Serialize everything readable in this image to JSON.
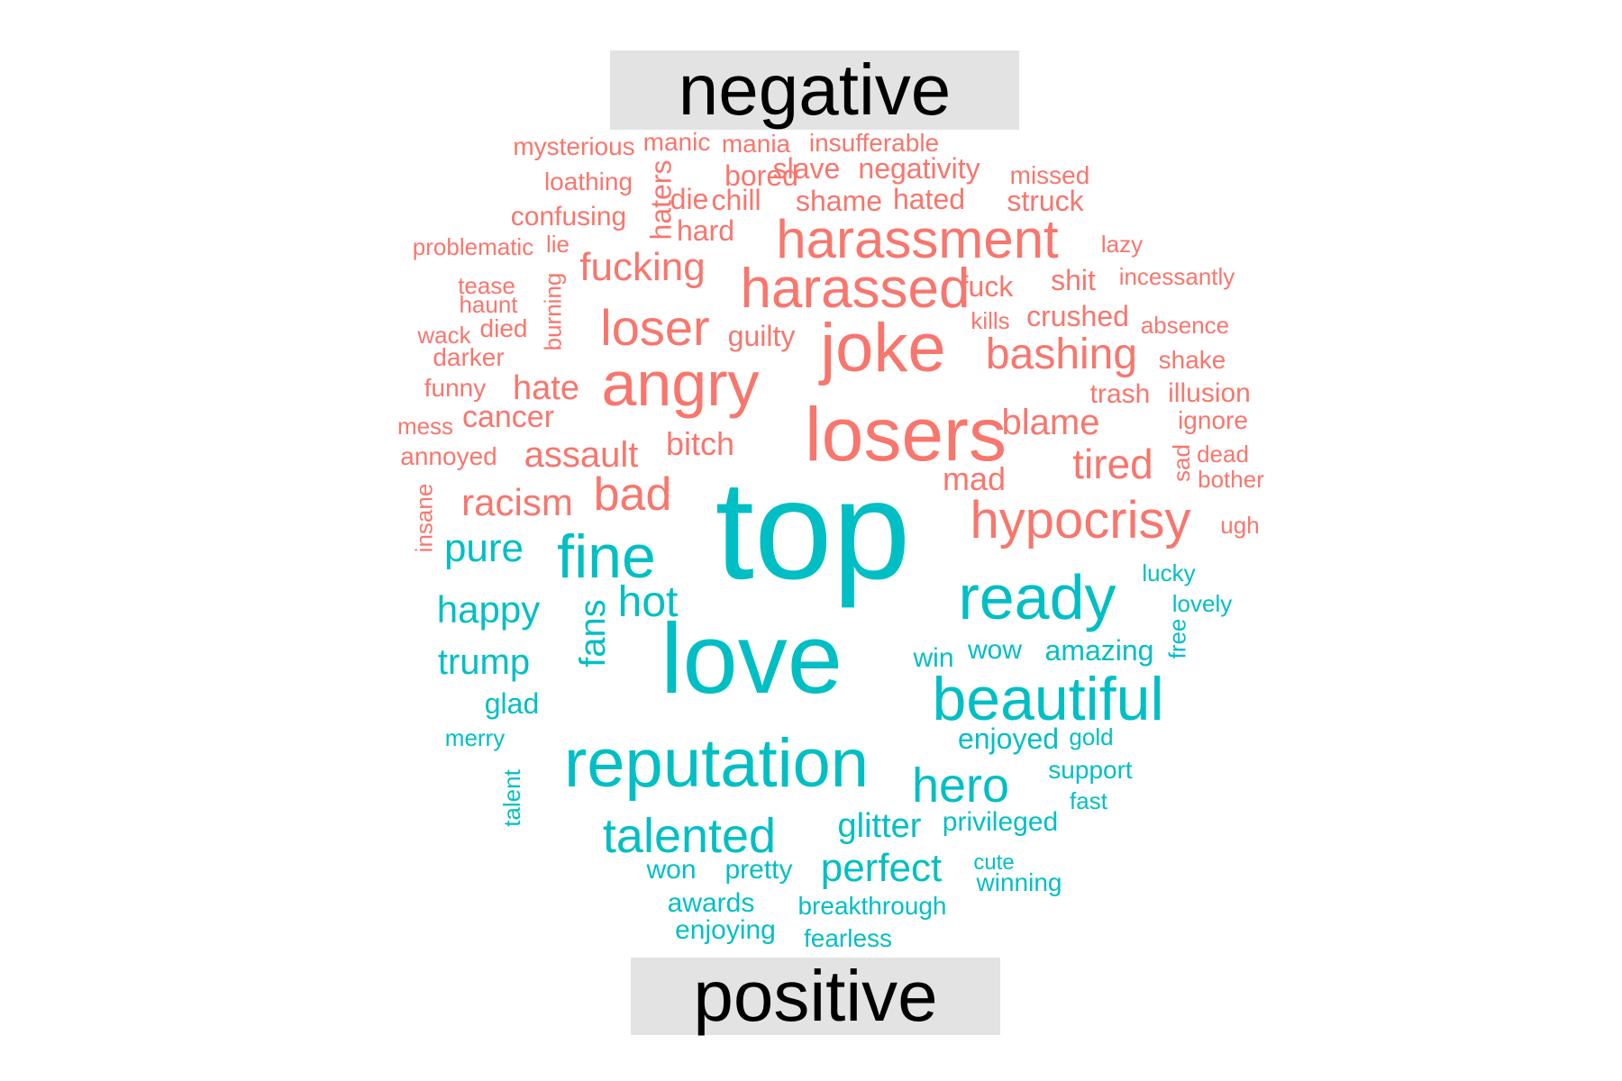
{
  "chart_data": {
    "type": "wordcloud",
    "title": "",
    "groups": [
      {
        "name": "negative",
        "color": "#F8766D"
      },
      {
        "name": "positive",
        "color": "#00BFC4"
      }
    ],
    "words": [
      {
        "text": "mysterious",
        "group": "negative"
      },
      {
        "text": "manic",
        "group": "negative"
      },
      {
        "text": "mania",
        "group": "negative"
      },
      {
        "text": "insufferable",
        "group": "negative"
      },
      {
        "text": "haters",
        "group": "negative"
      },
      {
        "text": "bored",
        "group": "negative"
      },
      {
        "text": "slave",
        "group": "negative"
      },
      {
        "text": "negativity",
        "group": "negative"
      },
      {
        "text": "missed",
        "group": "negative"
      },
      {
        "text": "loathing",
        "group": "negative"
      },
      {
        "text": "die",
        "group": "negative"
      },
      {
        "text": "chill",
        "group": "negative"
      },
      {
        "text": "shame",
        "group": "negative"
      },
      {
        "text": "hated",
        "group": "negative"
      },
      {
        "text": "struck",
        "group": "negative"
      },
      {
        "text": "confusing",
        "group": "negative"
      },
      {
        "text": "hard",
        "group": "negative"
      },
      {
        "text": "harassment",
        "group": "negative"
      },
      {
        "text": "problematic",
        "group": "negative"
      },
      {
        "text": "lie",
        "group": "negative"
      },
      {
        "text": "lazy",
        "group": "negative"
      },
      {
        "text": "fucking",
        "group": "negative"
      },
      {
        "text": "burning",
        "group": "negative"
      },
      {
        "text": "harassed",
        "group": "negative"
      },
      {
        "text": "fuck",
        "group": "negative"
      },
      {
        "text": "shit",
        "group": "negative"
      },
      {
        "text": "incessantly",
        "group": "negative"
      },
      {
        "text": "tease",
        "group": "negative"
      },
      {
        "text": "haunt",
        "group": "negative"
      },
      {
        "text": "loser",
        "group": "negative"
      },
      {
        "text": "crushed",
        "group": "negative"
      },
      {
        "text": "kills",
        "group": "negative"
      },
      {
        "text": "absence",
        "group": "negative"
      },
      {
        "text": "wack",
        "group": "negative"
      },
      {
        "text": "died",
        "group": "negative"
      },
      {
        "text": "guilty",
        "group": "negative"
      },
      {
        "text": "joke",
        "group": "negative"
      },
      {
        "text": "bashing",
        "group": "negative"
      },
      {
        "text": "shake",
        "group": "negative"
      },
      {
        "text": "darker",
        "group": "negative"
      },
      {
        "text": "angry",
        "group": "negative"
      },
      {
        "text": "funny",
        "group": "negative"
      },
      {
        "text": "hate",
        "group": "negative"
      },
      {
        "text": "trash",
        "group": "negative"
      },
      {
        "text": "illusion",
        "group": "negative"
      },
      {
        "text": "mess",
        "group": "negative"
      },
      {
        "text": "cancer",
        "group": "negative"
      },
      {
        "text": "losers",
        "group": "negative"
      },
      {
        "text": "blame",
        "group": "negative"
      },
      {
        "text": "ignore",
        "group": "negative"
      },
      {
        "text": "annoyed",
        "group": "negative"
      },
      {
        "text": "assault",
        "group": "negative"
      },
      {
        "text": "bitch",
        "group": "negative"
      },
      {
        "text": "sad",
        "group": "negative"
      },
      {
        "text": "dead",
        "group": "negative"
      },
      {
        "text": "tired",
        "group": "negative"
      },
      {
        "text": "bother",
        "group": "negative"
      },
      {
        "text": "insane",
        "group": "negative"
      },
      {
        "text": "bad",
        "group": "negative"
      },
      {
        "text": "mad",
        "group": "negative"
      },
      {
        "text": "racism",
        "group": "negative"
      },
      {
        "text": "hypocrisy",
        "group": "negative"
      },
      {
        "text": "ugh",
        "group": "negative"
      },
      {
        "text": "top",
        "group": "positive"
      },
      {
        "text": "pure",
        "group": "positive"
      },
      {
        "text": "fine",
        "group": "positive"
      },
      {
        "text": "lucky",
        "group": "positive"
      },
      {
        "text": "ready",
        "group": "positive"
      },
      {
        "text": "happy",
        "group": "positive"
      },
      {
        "text": "hot",
        "group": "positive"
      },
      {
        "text": "lovely",
        "group": "positive"
      },
      {
        "text": "fans",
        "group": "positive"
      },
      {
        "text": "free",
        "group": "positive"
      },
      {
        "text": "trump",
        "group": "positive"
      },
      {
        "text": "win",
        "group": "positive"
      },
      {
        "text": "wow",
        "group": "positive"
      },
      {
        "text": "amazing",
        "group": "positive"
      },
      {
        "text": "love",
        "group": "positive"
      },
      {
        "text": "beautiful",
        "group": "positive"
      },
      {
        "text": "glad",
        "group": "positive"
      },
      {
        "text": "merry",
        "group": "positive"
      },
      {
        "text": "enjoyed",
        "group": "positive"
      },
      {
        "text": "gold",
        "group": "positive"
      },
      {
        "text": "reputation",
        "group": "positive"
      },
      {
        "text": "support",
        "group": "positive"
      },
      {
        "text": "talent",
        "group": "positive"
      },
      {
        "text": "hero",
        "group": "positive"
      },
      {
        "text": "fast",
        "group": "positive"
      },
      {
        "text": "talented",
        "group": "positive"
      },
      {
        "text": "glitter",
        "group": "positive"
      },
      {
        "text": "privileged",
        "group": "positive"
      },
      {
        "text": "won",
        "group": "positive"
      },
      {
        "text": "pretty",
        "group": "positive"
      },
      {
        "text": "perfect",
        "group": "positive"
      },
      {
        "text": "cute",
        "group": "positive"
      },
      {
        "text": "winning",
        "group": "positive"
      },
      {
        "text": "awards",
        "group": "positive"
      },
      {
        "text": "breakthrough",
        "group": "positive"
      },
      {
        "text": "enjoying",
        "group": "positive"
      },
      {
        "text": "fearless",
        "group": "positive"
      }
    ]
  }
}
